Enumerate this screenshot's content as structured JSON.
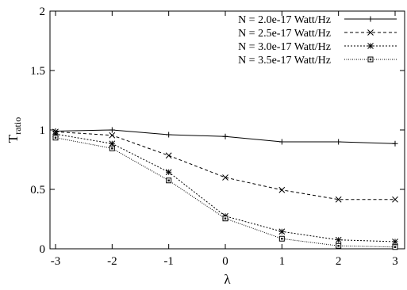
{
  "chart_data": {
    "type": "line",
    "title": "",
    "xlabel": "λ",
    "ylabel_main": "T",
    "ylabel_sub": "ratio",
    "xlim": [
      -3,
      3
    ],
    "ylim": [
      0,
      2
    ],
    "xticks": [
      -3,
      -2,
      -1,
      0,
      1,
      2,
      3
    ],
    "yticks": [
      0,
      0.5,
      1,
      1.5,
      2
    ],
    "xtick_labels": [
      "-3",
      "-2",
      "-1",
      "0",
      "1",
      "2",
      "3"
    ],
    "ytick_labels": [
      "0",
      "0.5",
      "1",
      "1.5",
      "2"
    ],
    "grid": false,
    "legend_position": "top-right",
    "x": [
      -3,
      -2,
      -1,
      0,
      1,
      2,
      3
    ],
    "series": [
      {
        "name": "N = 2.0e-17 Watt/Hz",
        "values": [
          0.99,
          1.0,
          0.96,
          0.945,
          0.9,
          0.9,
          0.885
        ],
        "dash": "solid",
        "marker": "plus"
      },
      {
        "name": "N = 2.5e-17 Watt/Hz",
        "values": [
          0.985,
          0.955,
          0.785,
          0.6,
          0.495,
          0.415,
          0.415
        ],
        "dash": "dashed",
        "marker": "x"
      },
      {
        "name": "N = 3.0e-17 Watt/Hz",
        "values": [
          0.965,
          0.885,
          0.645,
          0.275,
          0.145,
          0.075,
          0.06
        ],
        "dash": "dotted",
        "marker": "star"
      },
      {
        "name": "N = 3.5e-17 Watt/Hz",
        "values": [
          0.935,
          0.845,
          0.575,
          0.255,
          0.085,
          0.025,
          0.015
        ],
        "dash": "dense-dotted",
        "marker": "square"
      }
    ]
  }
}
